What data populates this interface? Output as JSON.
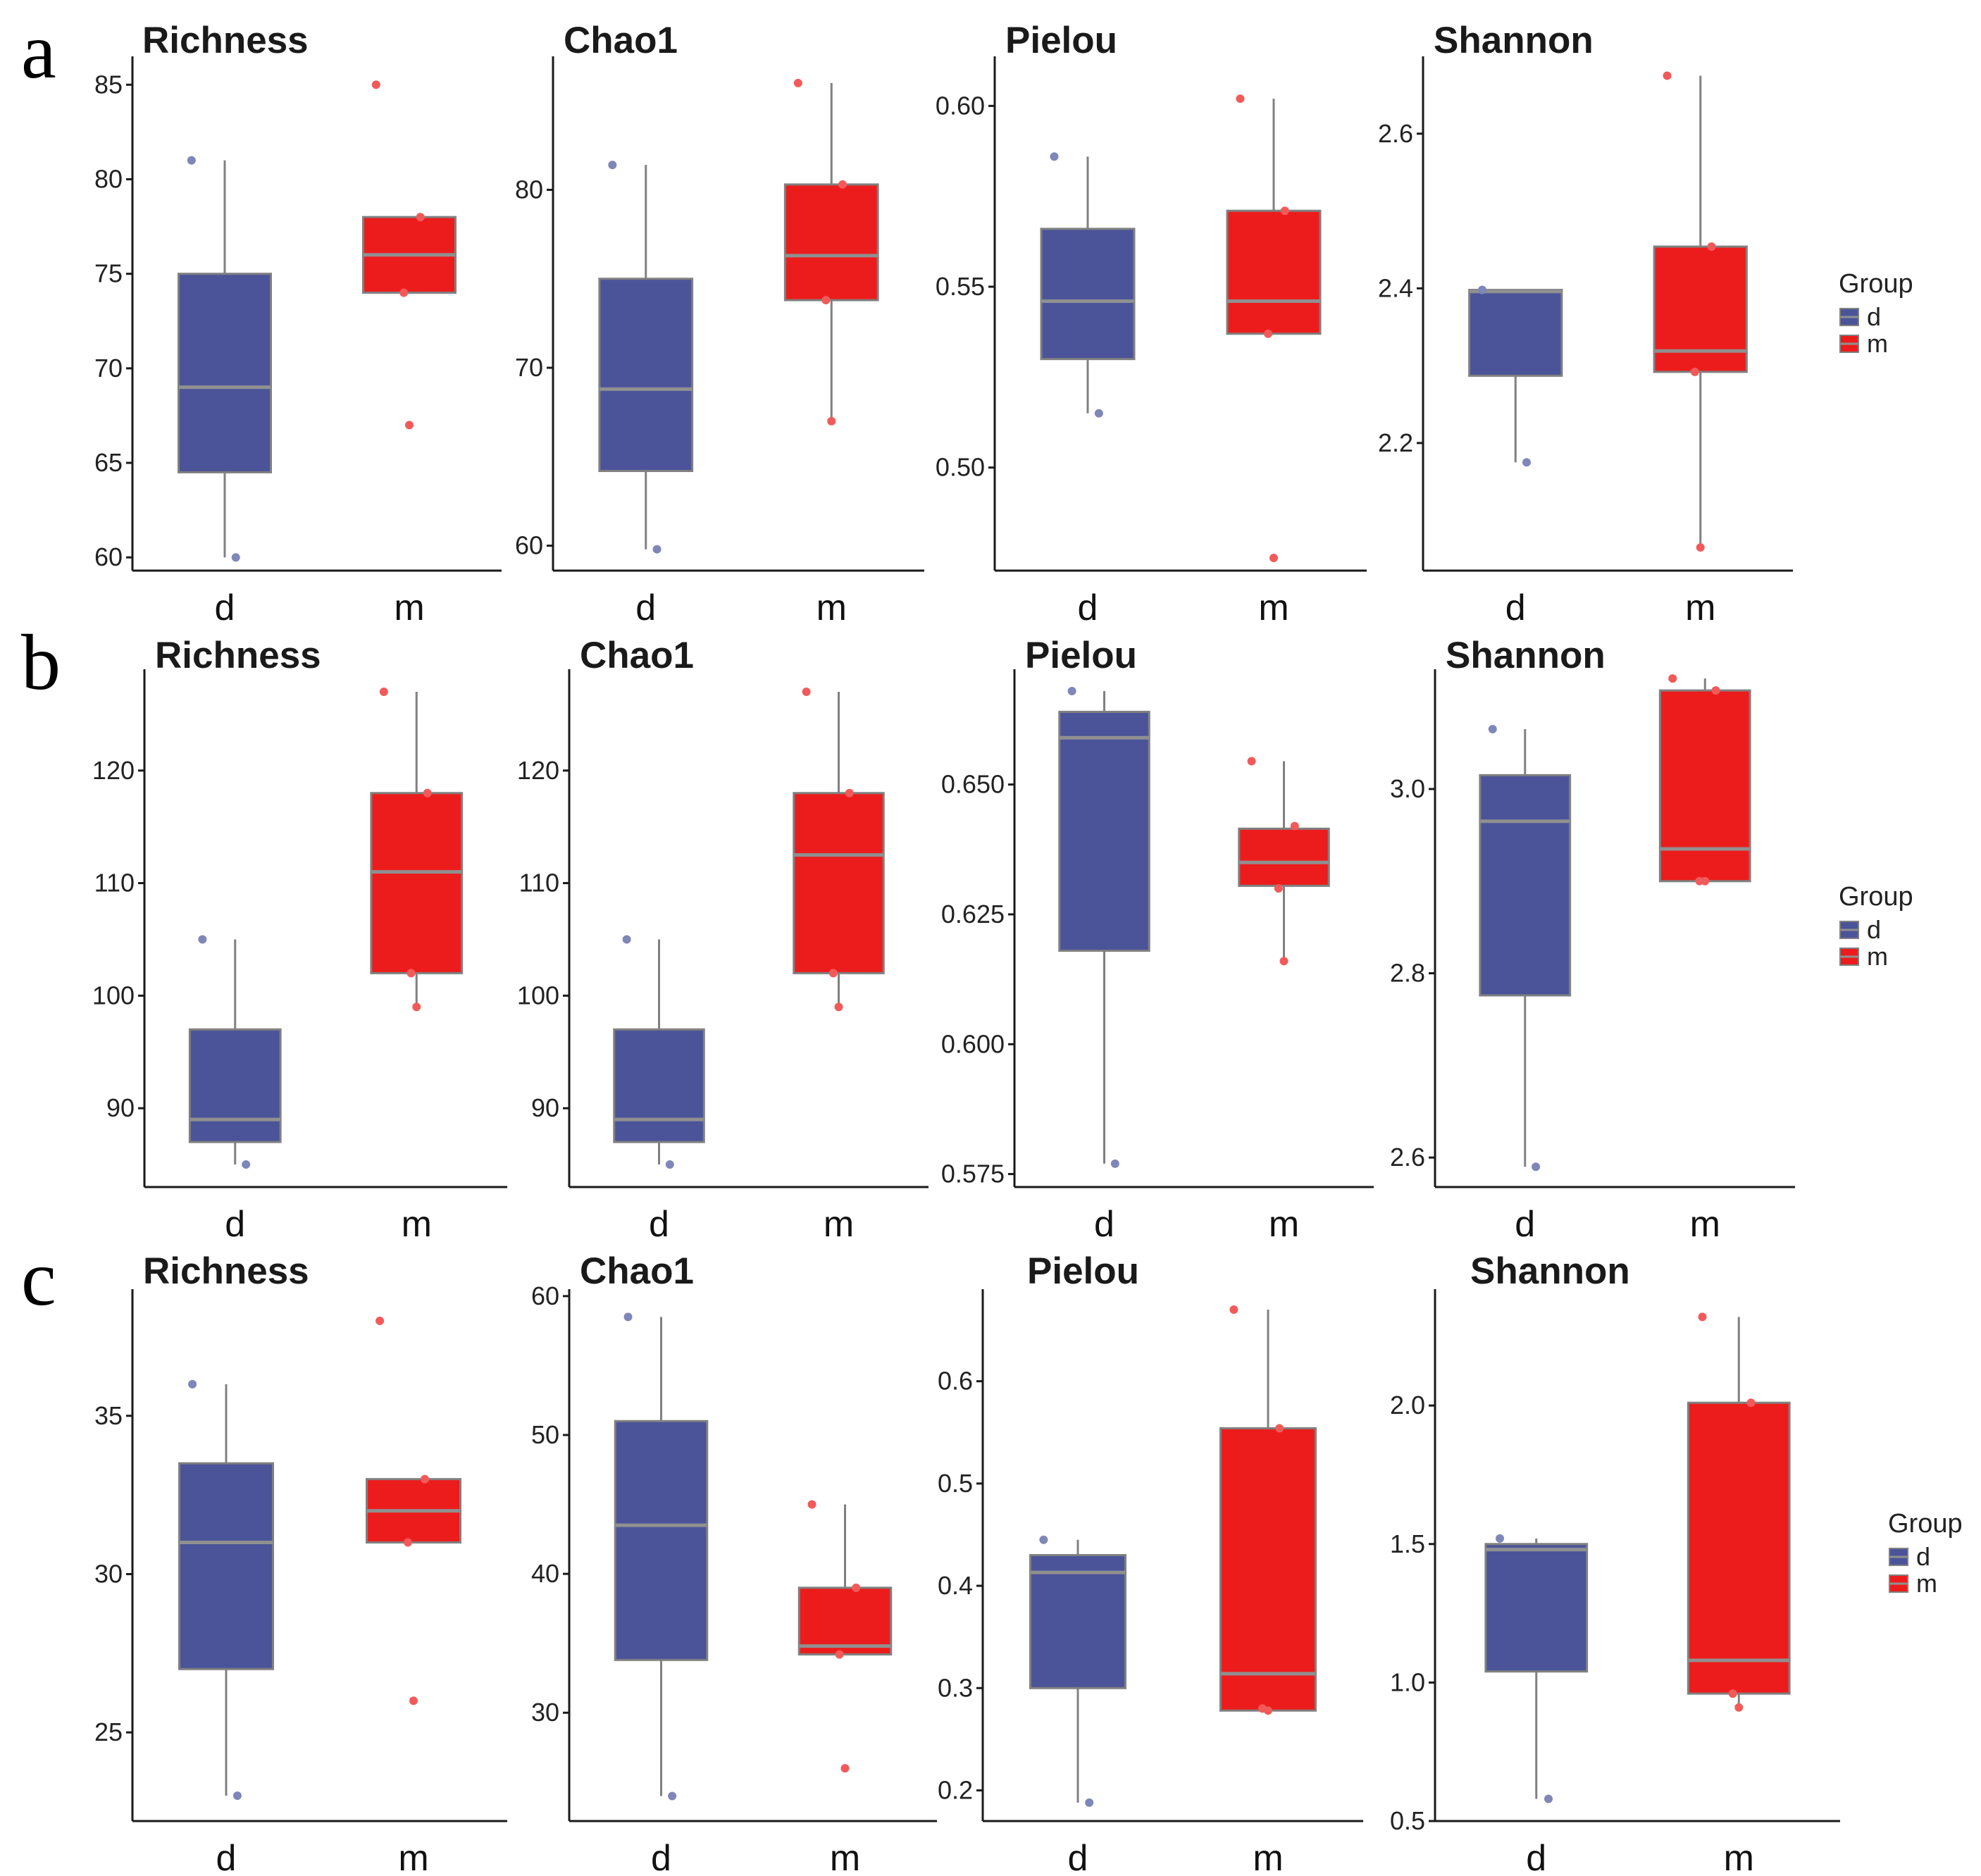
{
  "colors": {
    "d": "#4b5499",
    "m": "#ed1c1c",
    "d_point": "#7f86b8",
    "m_point": "#f25a5a",
    "median": "#909090",
    "whisker": "#808080",
    "axis": "#1a1a1a"
  },
  "legend": {
    "title": "Group",
    "items": [
      "d",
      "m"
    ]
  },
  "chart_data": [
    {
      "row": "a",
      "type": "box",
      "title": "Richness",
      "categories": [
        "d",
        "m"
      ],
      "ylim": [
        59.3,
        86.5
      ],
      "yticks": [
        60,
        65,
        70,
        75,
        80,
        85
      ],
      "tick_labels": [
        "60",
        "65",
        "70",
        "75",
        "80",
        "85"
      ],
      "boxes": [
        {
          "group": "d",
          "q1": 64.5,
          "median": 69,
          "q3": 75,
          "min": 60,
          "max": 81,
          "points": [
            81,
            60
          ]
        },
        {
          "group": "m",
          "q1": 74,
          "median": 76,
          "q3": 78,
          "min": 74,
          "max": 78,
          "points": [
            85,
            78,
            74,
            67
          ]
        }
      ]
    },
    {
      "row": "a",
      "type": "box",
      "title": "Chao1",
      "categories": [
        "d",
        "m"
      ],
      "ylim": [
        58.6,
        87.5
      ],
      "yticks": [
        60,
        70,
        80
      ],
      "tick_labels": [
        "60",
        "70",
        "80"
      ],
      "boxes": [
        {
          "group": "d",
          "q1": 64.2,
          "median": 68.8,
          "q3": 75,
          "min": 59.8,
          "max": 81.4,
          "points": [
            81.4,
            59.8
          ]
        },
        {
          "group": "m",
          "q1": 73.8,
          "median": 76.3,
          "q3": 80.3,
          "min": 67,
          "max": 86,
          "points": [
            86,
            80.3,
            73.8,
            67
          ]
        }
      ]
    },
    {
      "row": "a",
      "type": "box",
      "title": "Pielou",
      "categories": [
        "d",
        "m"
      ],
      "ylim": [
        0.4715,
        0.6137
      ],
      "yticks": [
        0.5,
        0.55,
        0.6
      ],
      "tick_labels": [
        "0.50",
        "0.55",
        "0.60"
      ],
      "boxes": [
        {
          "group": "d",
          "q1": 0.53,
          "median": 0.546,
          "q3": 0.566,
          "min": 0.515,
          "max": 0.586,
          "points": [
            0.586,
            0.515
          ]
        },
        {
          "group": "m",
          "q1": 0.537,
          "median": 0.546,
          "q3": 0.571,
          "min": 0.537,
          "max": 0.602,
          "points": [
            0.602,
            0.571,
            0.537,
            0.475
          ]
        }
      ]
    },
    {
      "row": "a",
      "type": "box",
      "title": "Shannon",
      "categories": [
        "d",
        "m"
      ],
      "ylim": [
        2.035,
        2.7
      ],
      "yticks": [
        2.2,
        2.4,
        2.6
      ],
      "tick_labels": [
        "2.2",
        "2.4",
        "2.6"
      ],
      "boxes": [
        {
          "group": "d",
          "q1": 2.287,
          "median": 2.396,
          "q3": 2.398,
          "min": 2.175,
          "max": 2.398,
          "points": [
            2.398,
            2.175
          ]
        },
        {
          "group": "m",
          "q1": 2.292,
          "median": 2.319,
          "q3": 2.454,
          "min": 2.065,
          "max": 2.675,
          "points": [
            2.675,
            2.454,
            2.292,
            2.065
          ]
        }
      ]
    },
    {
      "row": "b",
      "type": "box",
      "title": "Richness",
      "categories": [
        "d",
        "m"
      ],
      "ylim": [
        83,
        129
      ],
      "yticks": [
        90,
        100,
        110,
        120
      ],
      "tick_labels": [
        "90",
        "100",
        "110",
        "120"
      ],
      "boxes": [
        {
          "group": "d",
          "q1": 87,
          "median": 89,
          "q3": 97,
          "min": 85,
          "max": 105,
          "points": [
            105,
            85
          ]
        },
        {
          "group": "m",
          "q1": 102,
          "median": 111,
          "q3": 118,
          "min": 99,
          "max": 127,
          "points": [
            127,
            118,
            102,
            99
          ]
        }
      ]
    },
    {
      "row": "b",
      "type": "box",
      "title": "Chao1",
      "categories": [
        "d",
        "m"
      ],
      "ylim": [
        83,
        129
      ],
      "yticks": [
        90,
        100,
        110,
        120
      ],
      "tick_labels": [
        "90",
        "100",
        "110",
        "120"
      ],
      "boxes": [
        {
          "group": "d",
          "q1": 87,
          "median": 89,
          "q3": 97,
          "min": 85,
          "max": 105,
          "points": [
            105,
            85
          ]
        },
        {
          "group": "m",
          "q1": 102,
          "median": 112.5,
          "q3": 118,
          "min": 99,
          "max": 127,
          "points": [
            127,
            118,
            102,
            99
          ]
        }
      ]
    },
    {
      "row": "b",
      "type": "box",
      "title": "Pielou",
      "categories": [
        "d",
        "m"
      ],
      "ylim": [
        0.5725,
        0.6722
      ],
      "yticks": [
        0.575,
        0.6,
        0.625,
        0.65
      ],
      "tick_labels": [
        "0.575",
        "0.600",
        "0.625",
        "0.650"
      ],
      "boxes": [
        {
          "group": "d",
          "q1": 0.618,
          "median": 0.659,
          "q3": 0.664,
          "min": 0.577,
          "max": 0.668,
          "points": [
            0.668,
            0.577
          ]
        },
        {
          "group": "m",
          "q1": 0.6305,
          "median": 0.635,
          "q3": 0.6415,
          "min": 0.616,
          "max": 0.6545,
          "points": [
            0.6545,
            0.642,
            0.63,
            0.616
          ]
        }
      ]
    },
    {
      "row": "b",
      "type": "box",
      "title": "Shannon",
      "categories": [
        "d",
        "m"
      ],
      "ylim": [
        2.568,
        3.13
      ],
      "yticks": [
        2.6,
        2.8,
        3.0
      ],
      "tick_labels": [
        "2.6",
        "2.8",
        "3.0"
      ],
      "boxes": [
        {
          "group": "d",
          "q1": 2.776,
          "median": 2.965,
          "q3": 3.015,
          "min": 2.59,
          "max": 3.065,
          "points": [
            3.065,
            2.59
          ]
        },
        {
          "group": "m",
          "q1": 2.9,
          "median": 2.935,
          "q3": 3.107,
          "min": 2.9,
          "max": 3.12,
          "points": [
            3.12,
            3.107,
            2.9,
            2.9
          ]
        }
      ]
    },
    {
      "row": "c",
      "type": "box",
      "title": "Richness",
      "categories": [
        "d",
        "m"
      ],
      "ylim": [
        22.2,
        39
      ],
      "yticks": [
        25,
        30,
        35
      ],
      "tick_labels": [
        "25",
        "30",
        "35"
      ],
      "boxes": [
        {
          "group": "d",
          "q1": 27,
          "median": 31,
          "q3": 33.5,
          "min": 23,
          "max": 36,
          "points": [
            36,
            23
          ]
        },
        {
          "group": "m",
          "q1": 31,
          "median": 32,
          "q3": 33,
          "min": 31,
          "max": 33,
          "points": [
            38,
            33,
            31,
            26
          ]
        }
      ]
    },
    {
      "row": "c",
      "type": "box",
      "title": "Chao1",
      "categories": [
        "d",
        "m"
      ],
      "ylim": [
        22.2,
        60.5
      ],
      "yticks": [
        30,
        40,
        50,
        60
      ],
      "tick_labels": [
        "30",
        "40",
        "50",
        "60"
      ],
      "boxes": [
        {
          "group": "d",
          "q1": 33.8,
          "median": 43.5,
          "q3": 51,
          "min": 24,
          "max": 58.5,
          "points": [
            58.5,
            24
          ]
        },
        {
          "group": "m",
          "q1": 34.2,
          "median": 34.8,
          "q3": 39,
          "min": 34.2,
          "max": 45,
          "points": [
            45,
            39,
            34.2,
            26
          ]
        }
      ]
    },
    {
      "row": "c",
      "type": "box",
      "title": "Pielou",
      "categories": [
        "d",
        "m"
      ],
      "ylim": [
        0.17,
        0.69
      ],
      "yticks": [
        0.2,
        0.3,
        0.4,
        0.5,
        0.6
      ],
      "tick_labels": [
        "0.2",
        "0.3",
        "0.4",
        "0.5",
        "0.6"
      ],
      "boxes": [
        {
          "group": "d",
          "q1": 0.3,
          "median": 0.413,
          "q3": 0.43,
          "min": 0.188,
          "max": 0.445,
          "points": [
            0.445,
            0.188
          ]
        },
        {
          "group": "m",
          "q1": 0.278,
          "median": 0.314,
          "q3": 0.554,
          "min": 0.278,
          "max": 0.67,
          "points": [
            0.67,
            0.554,
            0.28,
            0.278
          ]
        }
      ]
    },
    {
      "row": "c",
      "type": "box",
      "title": "Shannon",
      "categories": [
        "d",
        "m"
      ],
      "ylim": [
        0.5,
        2.42
      ],
      "yticks": [
        0.5,
        1.0,
        1.5,
        2.0
      ],
      "tick_labels": [
        "0.5",
        "1.0",
        "1.5",
        "2.0"
      ],
      "boxes": [
        {
          "group": "d",
          "q1": 1.04,
          "median": 1.48,
          "q3": 1.5,
          "min": 0.58,
          "max": 1.52,
          "points": [
            1.52,
            0.58
          ]
        },
        {
          "group": "m",
          "q1": 0.96,
          "median": 1.08,
          "q3": 2.01,
          "min": 0.91,
          "max": 2.32,
          "points": [
            2.32,
            2.01,
            0.96,
            0.91
          ]
        }
      ]
    }
  ]
}
